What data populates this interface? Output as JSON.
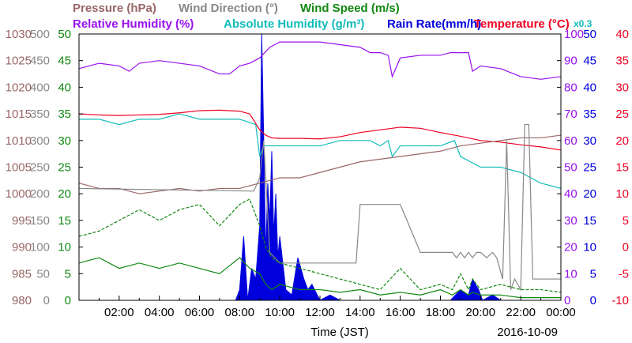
{
  "chart_data": {
    "type": "line",
    "date_label": "2016-10-09",
    "xlabel": "Time (JST)",
    "x_ticks": [
      "02:00",
      "04:00",
      "06:00",
      "08:00",
      "10:00",
      "12:00",
      "14:00",
      "16:00",
      "18:00",
      "20:00",
      "22:00",
      "00:00"
    ],
    "x_range_hours": [
      0,
      24
    ],
    "legend_top": [
      {
        "name": "Pressure (hPa)",
        "color": "#996666"
      },
      {
        "name": "Wind Direction (°)",
        "color": "#888888"
      },
      {
        "name": "Wind Speed (m/s)",
        "color": "#118811"
      }
    ],
    "legend_bottom": [
      {
        "name": "Relative Humidity (%)",
        "color": "#9911ee"
      },
      {
        "name": "Absolute Humidity (g/m³)",
        "color": "#11bbbb"
      },
      {
        "name": "Rain Rate(mm/h)",
        "color": "#0000dd"
      },
      {
        "name": "Temperature (°C)",
        "color": "#ee0022"
      }
    ],
    "rain_scale_note": "x0.3",
    "axes": {
      "pressure": {
        "color": "#996666",
        "ticks": [
          "980",
          "985",
          "990",
          "995",
          "1000",
          "1005",
          "1010",
          "1015",
          "1020",
          "1025",
          "1030"
        ]
      },
      "wind_dir": {
        "color": "#888888",
        "ticks": [
          "0",
          "50",
          "100",
          "150",
          "200",
          "250",
          "300",
          "350",
          "400",
          "450",
          "500"
        ]
      },
      "wind_speed": {
        "color": "#118811",
        "ticks": [
          "0",
          "5",
          "10",
          "15",
          "20",
          "25",
          "30",
          "35",
          "40",
          "45",
          "50"
        ]
      },
      "humidity": {
        "color": "#9911ee",
        "ticks": [
          "0",
          "10",
          "20",
          "30",
          "40",
          "50",
          "60",
          "70",
          "80",
          "90",
          "100"
        ]
      },
      "abs_hum": {
        "color": "#11bbbb",
        "ticks": [
          "0",
          "5",
          "10",
          "15",
          "20",
          "25",
          "30",
          "35",
          "40",
          "45",
          "50"
        ]
      },
      "rain": {
        "color": "#0000dd",
        "ticks": [
          "0",
          "5",
          "10",
          "15",
          "20",
          "25",
          "30",
          "35",
          "40",
          "45",
          "50"
        ]
      },
      "temp": {
        "color": "#ee0022",
        "ticks": [
          "-10",
          "-5",
          "0",
          "5",
          "10",
          "15",
          "20",
          "25",
          "30",
          "35",
          "40"
        ]
      }
    },
    "series": [
      {
        "name": "Relative Humidity (%)",
        "axis": "humidity",
        "x": [
          0,
          0.5,
          1,
          2,
          2.5,
          3,
          4,
          5,
          6,
          7,
          7.5,
          8,
          8.5,
          9,
          9.5,
          10,
          11,
          12,
          13,
          14,
          14.5,
          15,
          15.4,
          15.6,
          16,
          17,
          18,
          18.5,
          19,
          19.4,
          19.6,
          20,
          21,
          22,
          23,
          24
        ],
        "y": [
          87,
          88,
          89,
          88,
          86,
          89,
          90,
          89,
          88,
          85,
          85,
          88,
          89,
          91,
          95,
          97,
          97,
          97,
          96,
          95,
          93,
          93,
          92,
          84,
          91,
          92,
          92,
          93,
          93,
          93,
          86,
          88,
          87,
          84,
          83,
          84
        ]
      },
      {
        "name": "Absolute Humidity (g/m³)",
        "axis": "abs_hum",
        "x": [
          0,
          1,
          2,
          3,
          4,
          5,
          6,
          7,
          8,
          8.8,
          9,
          9.2,
          9.6,
          10,
          11,
          12,
          13,
          14,
          14.5,
          15,
          15.4,
          15.6,
          16,
          17,
          18,
          18.7,
          19,
          19.5,
          20,
          21,
          22,
          23,
          24
        ],
        "y": [
          34,
          34,
          33,
          34,
          34,
          35,
          34,
          34,
          34,
          33,
          27,
          29,
          29,
          29,
          29,
          29,
          30,
          30,
          30,
          29,
          30,
          27,
          29,
          29,
          29,
          30,
          27,
          26,
          25,
          25,
          24,
          22,
          21
        ]
      },
      {
        "name": "Temperature (°C)",
        "axis": "temp",
        "x": [
          0,
          1,
          2,
          3,
          4,
          5,
          6,
          7,
          8,
          8.5,
          9,
          9.3,
          9.6,
          10,
          11,
          12,
          13,
          14,
          15,
          16,
          17,
          18,
          19,
          20,
          21,
          22,
          23,
          24
        ],
        "y": [
          25,
          24.8,
          24.7,
          24.8,
          24.9,
          25.2,
          25.6,
          25.7,
          25.5,
          25,
          22,
          21,
          20.5,
          20.4,
          20.4,
          20.3,
          20.7,
          21.5,
          22,
          22.5,
          22.3,
          21.5,
          20.8,
          20,
          19.7,
          19.2,
          18.8,
          18.2
        ]
      },
      {
        "name": "Pressure (hPa)",
        "axis": "pressure",
        "x": [
          0,
          1,
          2,
          3,
          4,
          5,
          6,
          7,
          8,
          9,
          10,
          11,
          12,
          13,
          14,
          15,
          16,
          17,
          18,
          19,
          20,
          21,
          22,
          23,
          24
        ],
        "y": [
          1002,
          1001,
          1001,
          1000,
          1000.5,
          1001,
          1000.5,
          1001,
          1001,
          1002,
          1003,
          1003,
          1004,
          1005,
          1006,
          1006.5,
          1007,
          1007.5,
          1008,
          1009,
          1009.5,
          1010,
          1010.5,
          1010.5,
          1011
        ]
      },
      {
        "name": "Wind Direction (°)",
        "axis": "wind_dir",
        "x": [
          0,
          8.7,
          9,
          9.2,
          9.5,
          10,
          13,
          13.8,
          14,
          16,
          17,
          17.5,
          18,
          18.6,
          18.8,
          19,
          19.2,
          19.4,
          19.6,
          19.8,
          20,
          20.3,
          20.6,
          20.8,
          21.1,
          21.3,
          21.5,
          21.7,
          22,
          22.2,
          22.4,
          22.6,
          23,
          24
        ],
        "y": [
          210,
          205,
          230,
          300,
          90,
          70,
          70,
          70,
          180,
          180,
          90,
          90,
          90,
          90,
          80,
          90,
          80,
          90,
          80,
          90,
          90,
          80,
          90,
          80,
          40,
          300,
          20,
          40,
          20,
          330,
          330,
          40,
          40,
          40
        ]
      },
      {
        "name": "Wind Speed (m/s) avg",
        "axis": "wind_speed",
        "x": [
          0,
          1,
          2,
          3,
          4,
          5,
          6,
          7,
          8,
          8.5,
          9,
          9.3,
          9.6,
          10,
          11,
          12,
          13,
          14,
          15,
          16,
          17,
          18,
          18.6,
          19,
          19.4,
          19.6,
          20,
          21,
          22,
          23,
          24
        ],
        "y": [
          7,
          8,
          6,
          7,
          6,
          7,
          6,
          5,
          8,
          6,
          5,
          3,
          2,
          3,
          2,
          2,
          1.5,
          2,
          1,
          1.5,
          1,
          2,
          1,
          2,
          1,
          1.5,
          1,
          1,
          0.5,
          0.5,
          0.5
        ]
      },
      {
        "name": "Wind Speed (m/s) gust",
        "axis": "wind_speed",
        "x": [
          0,
          1,
          2,
          3,
          4,
          5,
          6,
          7,
          8,
          8.5,
          9,
          9.3,
          9.6,
          10,
          11,
          12,
          13,
          14,
          15,
          16,
          17,
          18,
          18.6,
          19,
          19.4,
          19.6,
          20,
          21,
          22,
          23,
          24
        ],
        "y": [
          12,
          13,
          15,
          17,
          15,
          17,
          18,
          14,
          18,
          19,
          14,
          10,
          8,
          7,
          6,
          5,
          4,
          3,
          2,
          6,
          2,
          3,
          2,
          5,
          2,
          4,
          2,
          3,
          2,
          2,
          1.5
        ]
      },
      {
        "name": "Rain Rate(mm/h)",
        "axis": "rain",
        "type": "area",
        "x": [
          7.5,
          7.8,
          8,
          8.2,
          8.4,
          8.6,
          8.8,
          9,
          9.1,
          9.2,
          9.3,
          9.4,
          9.5,
          9.6,
          9.7,
          9.8,
          9.9,
          10,
          10.3,
          10.6,
          10.9,
          11.2,
          11.4,
          11.6,
          12,
          12.5,
          13,
          14,
          15,
          16,
          17,
          18,
          18.5,
          19,
          19.4,
          19.6,
          19.9,
          20.1,
          20.6,
          21,
          21.5,
          22,
          22.5,
          23,
          24
        ],
        "y": [
          0,
          0,
          2,
          12,
          0,
          6,
          4,
          14,
          50,
          30,
          8,
          22,
          15,
          28,
          12,
          20,
          8,
          12,
          2,
          1,
          8,
          4,
          2,
          3,
          0,
          1,
          0,
          0,
          0,
          0,
          0,
          0,
          0,
          2,
          1,
          4,
          2,
          0,
          1,
          0,
          0,
          0,
          0,
          0,
          0
        ]
      }
    ]
  }
}
